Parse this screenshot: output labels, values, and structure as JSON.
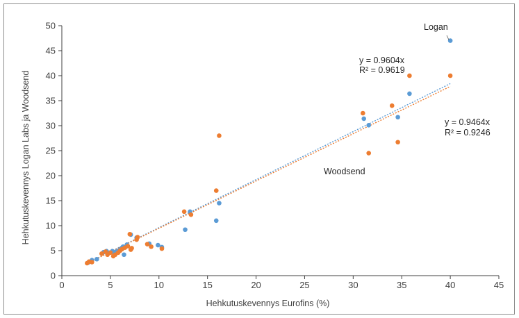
{
  "chart_data": {
    "type": "scatter",
    "xlabel": "Hehkutuskevennys Eurofins (%)",
    "ylabel": "Hehkutuskevennys Logan Labs ja Woodsend",
    "xlim": [
      0,
      45
    ],
    "ylim": [
      0,
      50
    ],
    "xticks": [
      "0",
      "5",
      "10",
      "15",
      "20",
      "25",
      "30",
      "35",
      "40",
      "45"
    ],
    "yticks": [
      "0",
      "5",
      "10",
      "15",
      "20",
      "25",
      "30",
      "35",
      "40",
      "45",
      "50"
    ],
    "grid": false,
    "legend": "none",
    "series": [
      {
        "name": "Logan",
        "color": "#5b9bd5",
        "trendline_slope": 0.9604,
        "points": [
          [
            2.7,
            2.6
          ],
          [
            3.1,
            3.1
          ],
          [
            3.6,
            3.3
          ],
          [
            4.3,
            4.7
          ],
          [
            4.6,
            4.9
          ],
          [
            4.9,
            4.6
          ],
          [
            5.2,
            4.9
          ],
          [
            5.4,
            4.4
          ],
          [
            5.6,
            4.8
          ],
          [
            5.9,
            5.1
          ],
          [
            6.1,
            5.4
          ],
          [
            6.3,
            5.8
          ],
          [
            6.4,
            4.2
          ],
          [
            6.7,
            6.2
          ],
          [
            7.1,
            8.2
          ],
          [
            7.7,
            7.6
          ],
          [
            9.0,
            6.4
          ],
          [
            9.9,
            6.1
          ],
          [
            10.3,
            5.7
          ],
          [
            12.7,
            9.2
          ],
          [
            13.2,
            12.8
          ],
          [
            15.9,
            11.0
          ],
          [
            16.2,
            14.5
          ],
          [
            31.1,
            31.4
          ],
          [
            31.6,
            30.1
          ],
          [
            34.6,
            31.7
          ],
          [
            35.8,
            36.4
          ],
          [
            40.0,
            47.0
          ]
        ]
      },
      {
        "name": "Woodsend",
        "color": "#ed7d31",
        "trendline_slope": 0.9464,
        "points": [
          [
            2.6,
            2.5
          ],
          [
            2.8,
            2.8
          ],
          [
            3.1,
            2.7
          ],
          [
            4.1,
            4.4
          ],
          [
            4.5,
            4.8
          ],
          [
            4.7,
            4.2
          ],
          [
            5.0,
            4.6
          ],
          [
            5.3,
            3.9
          ],
          [
            5.5,
            4.2
          ],
          [
            5.8,
            4.6
          ],
          [
            6.0,
            5.0
          ],
          [
            6.2,
            5.3
          ],
          [
            6.5,
            5.6
          ],
          [
            6.8,
            5.9
          ],
          [
            7.0,
            8.3
          ],
          [
            7.1,
            5.2
          ],
          [
            7.2,
            5.5
          ],
          [
            7.7,
            7.2
          ],
          [
            7.8,
            7.7
          ],
          [
            8.8,
            6.3
          ],
          [
            9.2,
            5.8
          ],
          [
            10.3,
            5.4
          ],
          [
            12.6,
            12.8
          ],
          [
            13.3,
            12.2
          ],
          [
            15.9,
            17.0
          ],
          [
            16.2,
            28.0
          ],
          [
            31.0,
            32.5
          ],
          [
            31.6,
            24.5
          ],
          [
            34.0,
            34.0
          ],
          [
            34.6,
            26.7
          ],
          [
            35.8,
            40.0
          ],
          [
            40.0,
            40.0
          ]
        ]
      }
    ],
    "annotations": [
      {
        "id": "logan",
        "text": "Logan"
      },
      {
        "id": "woodsend",
        "text": "Woodsend"
      },
      {
        "id": "eq1a",
        "text": "y = 0.9604x"
      },
      {
        "id": "eq1b",
        "text": "R² = 0.9619"
      },
      {
        "id": "eq2a",
        "text": "y = 0.9464x"
      },
      {
        "id": "eq2b",
        "text": "R² = 0.9246"
      }
    ]
  }
}
